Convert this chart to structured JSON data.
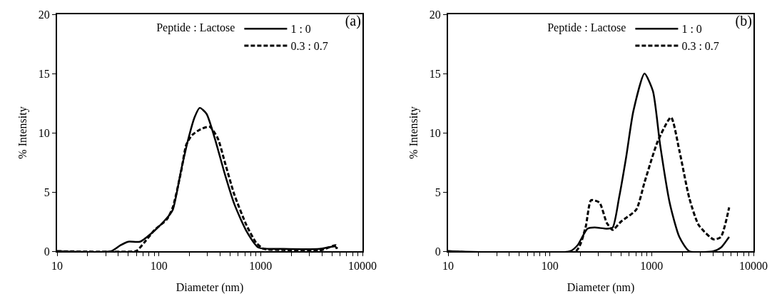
{
  "chart_data": [
    {
      "type": "line",
      "title": "(a)",
      "legend_title": "Peptide : Lactose",
      "xlabel": "Diameter (nm)",
      "ylabel": "% Intensity",
      "log": "x",
      "grid": false,
      "legend": "top right",
      "marker": "none",
      "xlim": [
        10,
        10000
      ],
      "ylim": [
        0,
        20
      ],
      "xticks": [
        10,
        {
          "value": 20,
          "label": null
        },
        {
          "value": 30,
          "label": null
        },
        {
          "value": 40,
          "label": null
        },
        {
          "value": 50,
          "label": null
        },
        {
          "value": 60,
          "label": null
        },
        {
          "value": 70,
          "label": null
        },
        {
          "value": 80,
          "label": null
        },
        {
          "value": 90,
          "label": null
        },
        100,
        {
          "value": 200,
          "label": null
        },
        {
          "value": 300,
          "label": null
        },
        {
          "value": 400,
          "label": null
        },
        {
          "value": 500,
          "label": null
        },
        {
          "value": 600,
          "label": null
        },
        {
          "value": 700,
          "label": null
        },
        {
          "value": 800,
          "label": null
        },
        {
          "value": 900,
          "label": null
        },
        1000,
        {
          "value": 2000,
          "label": null
        },
        {
          "value": 3000,
          "label": null
        },
        {
          "value": 4000,
          "label": null
        },
        {
          "value": 5000,
          "label": null
        },
        {
          "value": 6000,
          "label": null
        },
        {
          "value": 7000,
          "label": null
        },
        {
          "value": 8000,
          "label": null
        },
        {
          "value": 9000,
          "label": null
        },
        10000
      ],
      "yticks": [
        0,
        5,
        10,
        15,
        20
      ],
      "series": [
        {
          "name": "1 : 0",
          "color": "#000000",
          "line_style": "solid",
          "x": [
            10,
            34,
            42,
            50,
            65,
            91,
            120,
            137,
            166,
            195,
            224,
            252,
            294,
            355,
            445,
            550,
            725,
            955,
            1660,
            3800,
            5400,
            5600
          ],
          "values": [
            0,
            0,
            0.5,
            0.8,
            0.8,
            1.75,
            2.8,
            3.5,
            6.9,
            9.5,
            11.3,
            12.1,
            11.6,
            9.5,
            6.5,
            4,
            1.7,
            0.3,
            0.2,
            0.2,
            0.4,
            0.2
          ]
        },
        {
          "name": "0.3 : 0.7",
          "color": "#000000",
          "line_style": "dashed",
          "x": [
            10,
            59,
            62,
            73,
            91,
            120,
            137,
            166,
            186,
            212,
            258,
            316,
            380,
            445,
            550,
            725,
            905,
            1070,
            1660,
            3800,
            5500,
            5600
          ],
          "values": [
            0,
            0,
            0.1,
            0.8,
            1.8,
            2.7,
            3.7,
            6.8,
            9,
            9.8,
            10.3,
            10.5,
            9.5,
            7.5,
            4.8,
            2.2,
            0.7,
            0.2,
            0.1,
            0.05,
            0.5,
            0.2
          ]
        }
      ]
    },
    {
      "type": "line",
      "title": "(b)",
      "legend_title": "Peptide : Lactose",
      "xlabel": "Diameter (nm)",
      "ylabel": "% Intensity",
      "log": "x",
      "grid": false,
      "legend": "top right",
      "marker": "none",
      "xlim": [
        10,
        10000
      ],
      "ylim": [
        0,
        20
      ],
      "xticks": [
        10,
        {
          "value": 20,
          "label": null
        },
        {
          "value": 30,
          "label": null
        },
        {
          "value": 40,
          "label": null
        },
        {
          "value": 50,
          "label": null
        },
        {
          "value": 60,
          "label": null
        },
        {
          "value": 70,
          "label": null
        },
        {
          "value": 80,
          "label": null
        },
        {
          "value": 90,
          "label": null
        },
        100,
        {
          "value": 200,
          "label": null
        },
        {
          "value": 300,
          "label": null
        },
        {
          "value": 400,
          "label": null
        },
        {
          "value": 500,
          "label": null
        },
        {
          "value": 600,
          "label": null
        },
        {
          "value": 700,
          "label": null
        },
        {
          "value": 800,
          "label": null
        },
        {
          "value": 900,
          "label": null
        },
        1000,
        {
          "value": 2000,
          "label": null
        },
        {
          "value": 3000,
          "label": null
        },
        {
          "value": 4000,
          "label": null
        },
        {
          "value": 5000,
          "label": null
        },
        {
          "value": 6000,
          "label": null
        },
        {
          "value": 7000,
          "label": null
        },
        {
          "value": 8000,
          "label": null
        },
        {
          "value": 9000,
          "label": null
        },
        10000
      ],
      "yticks": [
        0,
        5,
        10,
        15,
        20
      ],
      "series": [
        {
          "name": "1 : 0",
          "color": "#000000",
          "line_style": "solid",
          "x": [
            10,
            158,
            187,
            234,
            275,
            362,
            414,
            478,
            563,
            660,
            850,
            1030,
            1210,
            1510,
            1870,
            2340,
            4050,
            4780,
            5770
          ],
          "values": [
            0,
            0,
            0.5,
            1.9,
            2,
            1.9,
            2,
            4.5,
            8,
            11.8,
            15,
            13.5,
            9,
            4,
            1.2,
            0,
            0,
            0.3,
            1.2
          ]
        },
        {
          "name": "0.3 : 0.7",
          "color": "#000000",
          "line_style": "dashed",
          "x": [
            10,
            180,
            224,
            254,
            307,
            362,
            414,
            500,
            705,
            850,
            1150,
            1550,
            1870,
            2340,
            2900,
            4050,
            4780,
            5770
          ],
          "values": [
            0,
            0,
            2,
            4.3,
            4.1,
            2.4,
            1.8,
            2.5,
            3.5,
            5.8,
            9.3,
            11.3,
            8.5,
            4.5,
            2.2,
            1,
            1.2,
            3.7
          ]
        }
      ]
    }
  ]
}
